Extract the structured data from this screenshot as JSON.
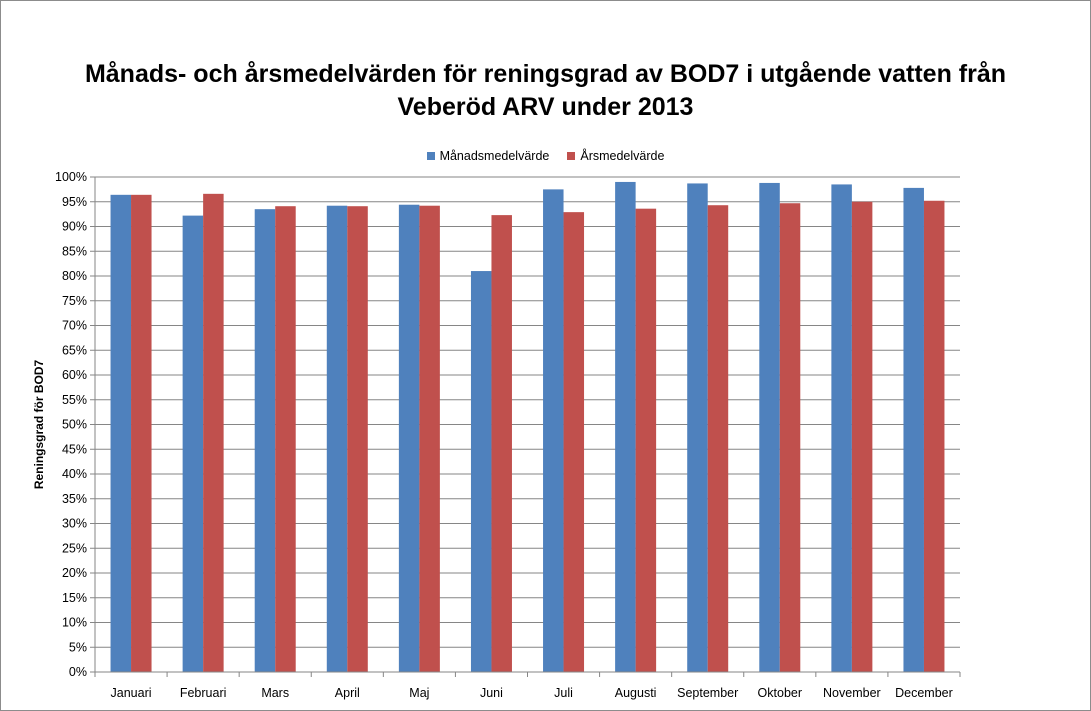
{
  "chart_data": {
    "type": "bar",
    "title_lines": [
      "Månads- och årsmedelvärden för reningsgrad av BOD7 i utgående vatten från",
      "Veberöd ARV under 2013"
    ],
    "xlabel": "",
    "ylabel": "Reningsgrad för BOD7",
    "ylim": [
      0,
      100
    ],
    "yticks": [
      "0%",
      "5%",
      "10%",
      "15%",
      "20%",
      "25%",
      "30%",
      "35%",
      "40%",
      "45%",
      "50%",
      "55%",
      "60%",
      "65%",
      "70%",
      "75%",
      "80%",
      "85%",
      "90%",
      "95%",
      "100%"
    ],
    "categories": [
      "Januari",
      "Februari",
      "Mars",
      "April",
      "Maj",
      "Juni",
      "Juli",
      "Augusti",
      "September",
      "Oktober",
      "November",
      "December"
    ],
    "series": [
      {
        "name": "Månadsmedelvärde",
        "color": "#4f81bd",
        "values": [
          96.4,
          92.2,
          93.5,
          94.2,
          94.4,
          81.0,
          97.5,
          99.0,
          98.7,
          98.8,
          98.5,
          97.8
        ]
      },
      {
        "name": "Årsmedelvärde",
        "color": "#c0504d",
        "values": [
          96.4,
          96.6,
          94.1,
          94.1,
          94.2,
          92.3,
          92.9,
          93.6,
          94.3,
          94.7,
          95.0,
          95.2
        ]
      }
    ],
    "grid": true,
    "legend_position": "top-center"
  }
}
